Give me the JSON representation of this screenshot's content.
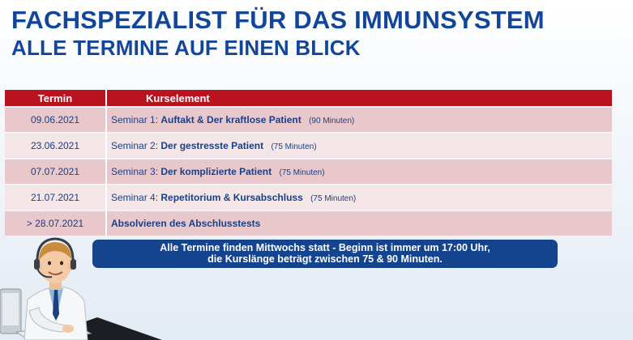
{
  "header": {
    "title_line1": "FACHSPEZIALIST FÜR DAS IMMUNSYSTEM",
    "title_line2": "ALLE TERMINE AUF EINEN BLICK"
  },
  "table": {
    "headers": {
      "date": "Termin",
      "course": "Kurselement"
    },
    "rows": [
      {
        "date": "09.06.2021",
        "prefix": "Seminar 1:",
        "title": "Auftakt & Der kraftlose Patient",
        "duration": "(90 Minuten)"
      },
      {
        "date": "23.06.2021",
        "prefix": "Seminar 2:",
        "title": "Der gestresste Patient",
        "duration": "(75 Minuten)"
      },
      {
        "date": "07.07.2021",
        "prefix": "Seminar 3:",
        "title": "Der komplizierte Patient",
        "duration": "(75 Minuten)"
      },
      {
        "date": "21.07.2021",
        "prefix": "Seminar 4:",
        "title": "Repetitorium & Kursabschluss",
        "duration": "(75 Minuten)"
      },
      {
        "date": "> 28.07.2021",
        "prefix": "",
        "title": "Absolvieren des Abschlusstests",
        "duration": ""
      }
    ]
  },
  "note": {
    "line1": "Alle Termine finden Mittwochs statt  - Beginn ist immer um 17:00 Uhr,",
    "line2": "die Kurslänge beträgt zwischen 75 & 90 Minuten."
  },
  "illustration": {
    "icon": "doctor-at-computer-icon"
  },
  "colors": {
    "title": "#13459a",
    "header_red": "#b9131f",
    "row_dark": "#e9c8cb",
    "row_light": "#f4e6e7",
    "note_blue": "#14448d"
  }
}
